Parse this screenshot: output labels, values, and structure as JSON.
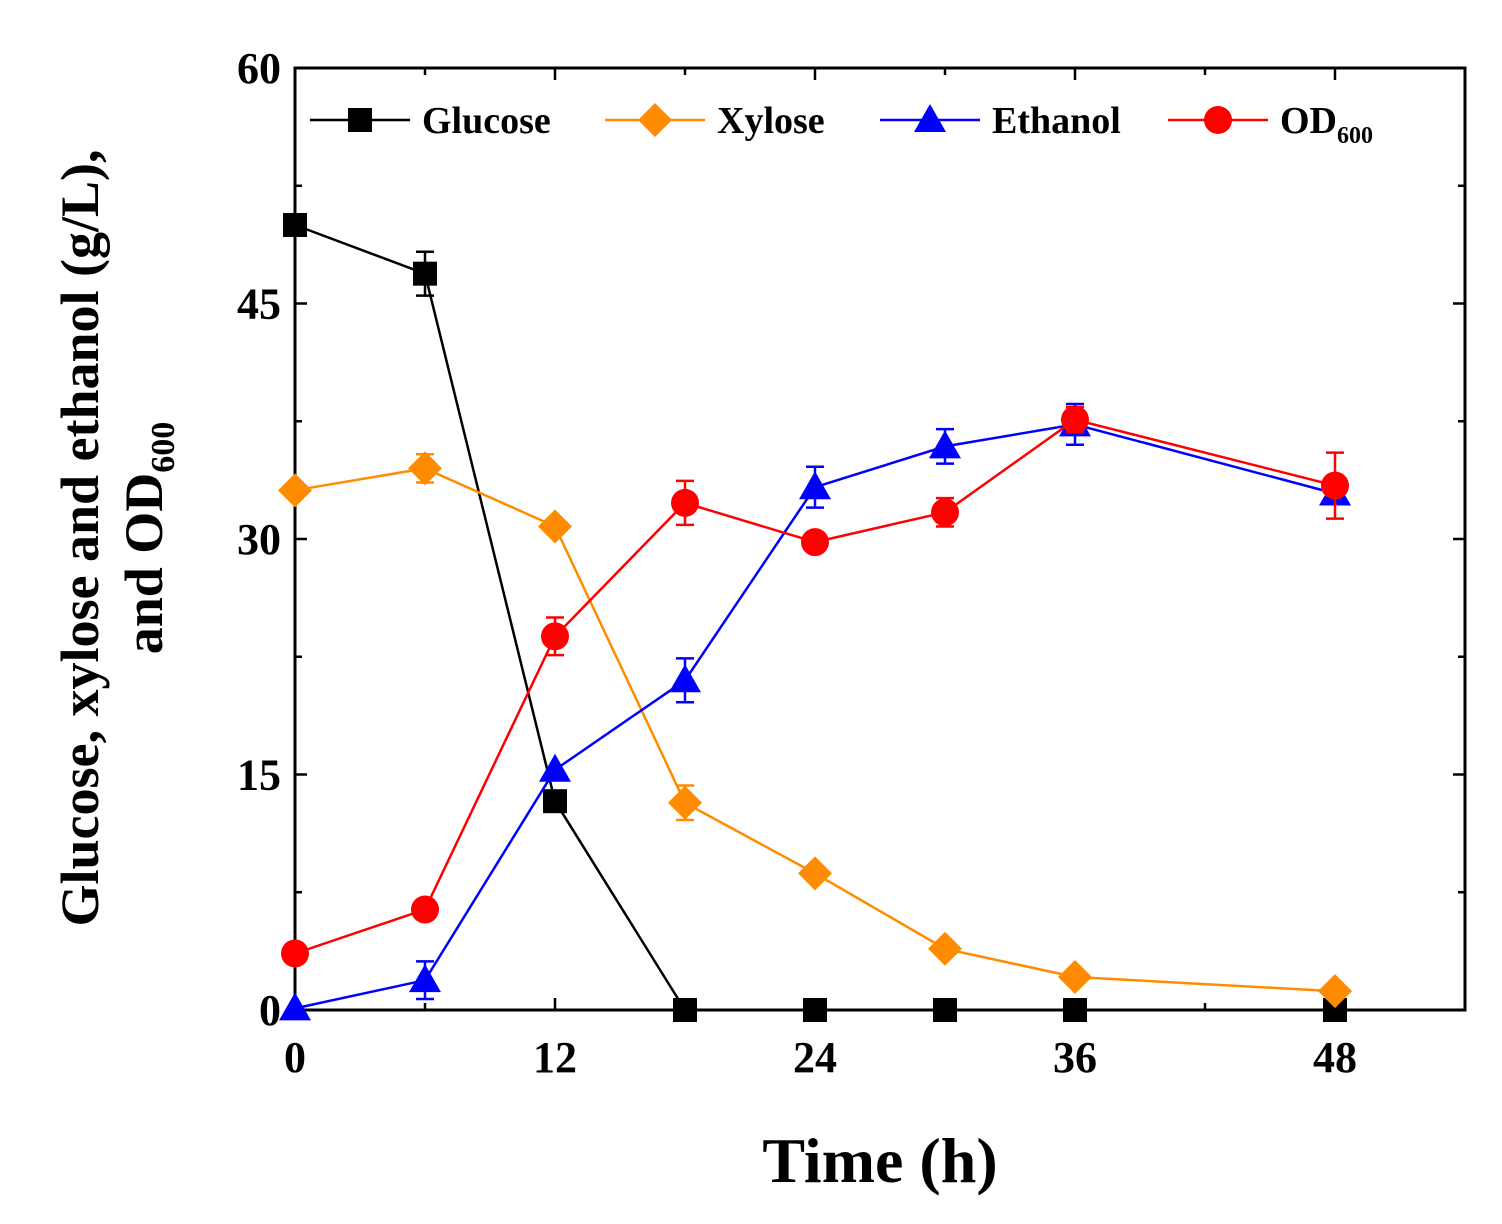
{
  "chart_data": {
    "type": "line",
    "title": "",
    "xlabel": "Time (h)",
    "ylabel": {
      "line1": "Glucose, xylose and ethanol (g/L),",
      "line2_main": "and OD",
      "line2_sub": "600"
    },
    "xlim": [
      0,
      54
    ],
    "ylim": [
      0,
      60
    ],
    "x_ticks": [
      "0",
      "12",
      "24",
      "36",
      "48"
    ],
    "y_ticks": [
      "0",
      "15",
      "30",
      "45",
      "60"
    ],
    "legend_position": "top",
    "series": [
      {
        "name": "Glucose",
        "name_sub": "",
        "color": "#000000",
        "marker": "square",
        "x": [
          0,
          6,
          12,
          18,
          24,
          30,
          36,
          48
        ],
        "y": [
          50.0,
          46.9,
          13.3,
          0,
          0,
          0,
          0,
          0
        ],
        "err": [
          0,
          1.4,
          0.6,
          0,
          0,
          0,
          0,
          0
        ]
      },
      {
        "name": "Xylose",
        "name_sub": "",
        "color": "#ff8c00",
        "marker": "diamond",
        "x": [
          0,
          6,
          12,
          18,
          24,
          30,
          36,
          48
        ],
        "y": [
          33.1,
          34.5,
          30.8,
          13.2,
          8.7,
          3.9,
          2.1,
          1.2
        ],
        "err": [
          0,
          0.9,
          0,
          1.1,
          0,
          0,
          0,
          0
        ]
      },
      {
        "name": "Ethanol",
        "name_sub": "",
        "color": "#0000ff",
        "marker": "triangle",
        "x": [
          0,
          6,
          12,
          18,
          24,
          30,
          36,
          48
        ],
        "y": [
          0.1,
          1.9,
          15.3,
          21.0,
          33.3,
          35.9,
          37.3,
          32.9
        ],
        "err": [
          0,
          1.2,
          0,
          1.4,
          1.3,
          1.1,
          1.3,
          0
        ]
      },
      {
        "name": "OD",
        "name_sub": "600",
        "color": "#ff0000",
        "marker": "circle",
        "x": [
          0,
          6,
          12,
          18,
          24,
          30,
          36,
          48
        ],
        "y": [
          3.6,
          6.4,
          23.8,
          32.3,
          29.8,
          31.7,
          37.6,
          33.4
        ],
        "err": [
          0,
          0,
          1.2,
          1.4,
          0,
          0.9,
          0.8,
          2.1
        ]
      }
    ]
  }
}
